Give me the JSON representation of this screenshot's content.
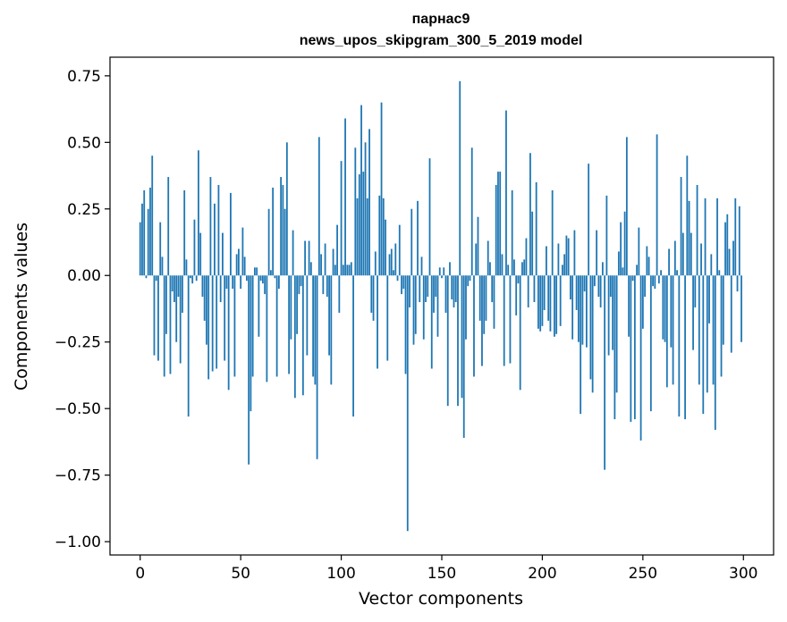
{
  "chart_data": {
    "type": "bar",
    "title": "парнас9",
    "subtitle": "news_upos_skipgram_300_5_2019 model",
    "xlabel": "Vector components",
    "ylabel": "Components values",
    "xlim": [
      -15,
      315
    ],
    "ylim": [
      -1.05,
      0.82
    ],
    "xticks": [
      0,
      50,
      100,
      150,
      200,
      250,
      300
    ],
    "xtick_labels": [
      "0",
      "50",
      "100",
      "150",
      "200",
      "250",
      "300"
    ],
    "yticks": [
      0.75,
      0.5,
      0.25,
      0.0,
      -0.25,
      -0.5,
      -0.75,
      -1.0
    ],
    "ytick_labels": [
      "0.75",
      "0.50",
      "0.25",
      "0.00",
      "−0.25",
      "−0.50",
      "−0.75",
      "−1.00"
    ],
    "x": "0..299",
    "values": [
      0.2,
      0.27,
      0.32,
      -0.01,
      0.25,
      0.33,
      0.45,
      -0.3,
      -0.02,
      -0.32,
      0.2,
      0.07,
      -0.38,
      -0.22,
      0.37,
      -0.37,
      -0.06,
      -0.1,
      -0.25,
      -0.08,
      -0.33,
      -0.14,
      0.32,
      0.06,
      -0.53,
      -0.01,
      -0.03,
      0.21,
      -0.02,
      0.47,
      0.16,
      -0.08,
      -0.17,
      -0.26,
      -0.39,
      0.37,
      -0.36,
      0.27,
      -0.35,
      0.34,
      -0.1,
      0.16,
      -0.32,
      -0.05,
      -0.43,
      0.31,
      -0.05,
      -0.38,
      0.08,
      0.1,
      -0.05,
      0.18,
      0.07,
      -0.02,
      -0.71,
      -0.51,
      -0.38,
      0.03,
      0.03,
      -0.23,
      -0.02,
      -0.03,
      -0.07,
      -0.4,
      0.25,
      0.02,
      0.33,
      -0.01,
      -0.38,
      -0.05,
      0.37,
      0.34,
      0.25,
      0.5,
      -0.37,
      -0.24,
      0.17,
      -0.46,
      -0.22,
      -0.07,
      -0.04,
      -0.45,
      0.13,
      -0.3,
      0.13,
      0.05,
      -0.38,
      -0.41,
      -0.69,
      0.52,
      0.08,
      -0.07,
      0.12,
      -0.08,
      -0.3,
      -0.41,
      0.1,
      0.04,
      0.19,
      -0.14,
      0.43,
      0.04,
      0.59,
      0.04,
      0.04,
      0.05,
      -0.53,
      0.48,
      0.29,
      0.38,
      0.64,
      0.39,
      0.5,
      0.29,
      0.55,
      -0.14,
      -0.17,
      0.09,
      -0.35,
      0.3,
      0.65,
      0.29,
      0.21,
      -0.32,
      0.08,
      0.1,
      0.02,
      0.12,
      -0.02,
      0.19,
      -0.07,
      -0.05,
      -0.37,
      -0.96,
      -0.12,
      0.25,
      -0.26,
      -0.22,
      0.28,
      -0.1,
      0.07,
      -0.24,
      -0.1,
      -0.08,
      0.44,
      -0.35,
      -0.14,
      -0.08,
      -0.23,
      0.03,
      -0.01,
      0.03,
      -0.14,
      -0.49,
      0.05,
      -0.09,
      -0.12,
      -0.1,
      -0.49,
      0.73,
      -0.46,
      -0.61,
      -0.24,
      -0.04,
      -0.02,
      0.48,
      -0.38,
      0.12,
      0.22,
      -0.17,
      -0.34,
      -0.22,
      -0.17,
      0.13,
      0.05,
      -0.1,
      -0.2,
      0.34,
      0.39,
      0.39,
      0.08,
      -0.34,
      0.62,
      0.04,
      -0.33,
      0.32,
      0.06,
      -0.15,
      -0.03,
      -0.43,
      0.05,
      0.06,
      0.14,
      -0.12,
      0.46,
      0.24,
      -0.1,
      0.35,
      -0.2,
      -0.21,
      -0.19,
      -0.13,
      0.11,
      -0.17,
      -0.21,
      0.32,
      -0.23,
      -0.22,
      0.12,
      -0.19,
      0.04,
      0.08,
      0.15,
      0.14,
      -0.09,
      -0.24,
      0.17,
      -0.13,
      -0.25,
      -0.52,
      -0.26,
      -0.06,
      -0.27,
      0.42,
      -0.39,
      -0.44,
      -0.04,
      0.17,
      -0.08,
      -0.12,
      0.05,
      -0.73,
      0.3,
      -0.3,
      -0.08,
      -0.28,
      -0.54,
      -0.44,
      0.09,
      0.2,
      0.03,
      0.24,
      0.52,
      -0.23,
      -0.55,
      -0.02,
      -0.54,
      0.04,
      0.18,
      -0.62,
      -0.2,
      -0.08,
      0.11,
      0.07,
      -0.51,
      -0.04,
      -0.05,
      0.53,
      -0.03,
      0.02,
      -0.24,
      -0.25,
      -0.42,
      0.1,
      -0.27,
      -0.41,
      0.13,
      0.02,
      -0.53,
      0.37,
      0.16,
      -0.54,
      0.45,
      0.28,
      0.16,
      -0.28,
      -0.12,
      0.34,
      -0.41,
      0.12,
      -0.52,
      0.29,
      -0.44,
      -0.18,
      0.08,
      -0.41,
      -0.58,
      0.29,
      0.02,
      -0.38,
      -0.26,
      0.2,
      0.23,
      0.1,
      -0.29,
      0.13,
      0.29,
      -0.06,
      0.26,
      -0.25
    ]
  }
}
